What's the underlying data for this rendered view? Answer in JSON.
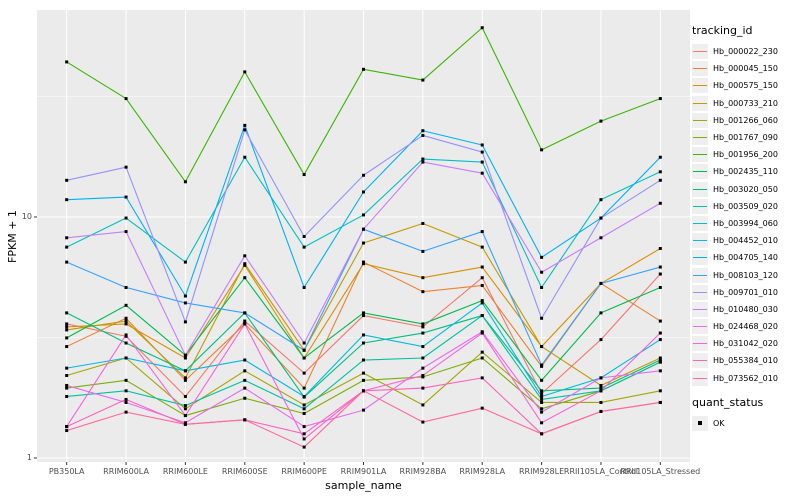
{
  "chart_data": {
    "type": "line",
    "title": "",
    "xlabel": "sample_name",
    "ylabel": "FPKM + 1",
    "yscale": "log10",
    "ylim": [
      1,
      72
    ],
    "y_ticks": [
      1,
      10
    ],
    "grid": true,
    "legend_position": "right",
    "point_shape": "square",
    "point_color": "#000000",
    "categories": [
      "PB350LA",
      "RRIM600LA",
      "RRIM600LE",
      "RRIM600SE",
      "RRIM600PE",
      "RRIM901LA",
      "RRIM928BA",
      "RRIM928LA",
      "RRIM928LE",
      "RRII105LA_Control",
      "RRII105LA_Stressed"
    ],
    "series": [
      {
        "name": "Hb_000022_230",
        "color": "#F8766D",
        "values": [
          3.6,
          3.2,
          1.8,
          3.7,
          2.25,
          3.9,
          3.5,
          5.6,
          1.85,
          3.1,
          5.8
        ]
      },
      {
        "name": "Hb_000045_150",
        "color": "#EA8331",
        "values": [
          2.9,
          3.8,
          2.1,
          3.6,
          1.95,
          6.5,
          4.9,
          5.2,
          2.4,
          5.3,
          3.7
        ]
      },
      {
        "name": "Hb_000575_150",
        "color": "#D89000",
        "values": [
          3.5,
          3.6,
          2.6,
          6.3,
          2.6,
          6.4,
          5.6,
          6.2,
          2.9,
          5.3,
          7.4
        ]
      },
      {
        "name": "Hb_000733_210",
        "color": "#C09B00",
        "values": [
          3.4,
          3.7,
          2.15,
          6.4,
          2.8,
          7.8,
          9.4,
          7.5,
          2.9,
          2.0,
          2.6
        ]
      },
      {
        "name": "Hb_001266_060",
        "color": "#A3A500",
        "values": [
          2.2,
          2.6,
          1.6,
          2.3,
          1.66,
          2.25,
          1.66,
          2.75,
          1.7,
          1.7,
          1.9
        ]
      },
      {
        "name": "Hb_001767_090",
        "color": "#7CAE00",
        "values": [
          1.95,
          2.1,
          1.5,
          1.77,
          1.53,
          2.1,
          2.17,
          2.6,
          1.6,
          1.9,
          2.5
        ]
      },
      {
        "name": "Hb_001956_200",
        "color": "#39B600",
        "values": [
          44,
          31,
          14,
          40,
          15,
          41,
          37,
          61,
          19,
          25,
          31
        ]
      },
      {
        "name": "Hb_002435_110",
        "color": "#00BB4E",
        "values": [
          3.15,
          4.3,
          2.67,
          5.6,
          2.6,
          4.0,
          3.6,
          4.5,
          2.1,
          4.0,
          5.1
        ]
      },
      {
        "name": "Hb_003020_050",
        "color": "#00BF7D",
        "values": [
          4.0,
          3.0,
          2.3,
          4.0,
          1.79,
          3.0,
          3.3,
          3.9,
          1.9,
          1.95,
          2.55
        ]
      },
      {
        "name": "Hb_003509_020",
        "color": "#00C1A3",
        "values": [
          1.8,
          1.9,
          1.65,
          2.1,
          1.6,
          2.55,
          2.6,
          3.9,
          1.75,
          1.9,
          2.5
        ]
      },
      {
        "name": "Hb_003994_060",
        "color": "#00BFC4",
        "values": [
          7.5,
          9.9,
          6.5,
          17.7,
          7.5,
          10.2,
          17.4,
          16.9,
          5.1,
          11.8,
          15.4
        ]
      },
      {
        "name": "Hb_004452_010",
        "color": "#00BAE0",
        "values": [
          2.36,
          2.6,
          2.3,
          2.55,
          1.8,
          3.24,
          2.9,
          4.4,
          1.8,
          2.15,
          3.1
        ]
      },
      {
        "name": "Hb_004705_140",
        "color": "#00B0F6",
        "values": [
          11.8,
          12.1,
          4.7,
          24,
          5.1,
          12.7,
          22.8,
          19.9,
          6.8,
          9.9,
          17.7
        ]
      },
      {
        "name": "Hb_008103_120",
        "color": "#35A2FF",
        "values": [
          6.5,
          5.1,
          4.4,
          4.0,
          2.8,
          8.9,
          7.2,
          8.7,
          2.43,
          5.3,
          6.2
        ]
      },
      {
        "name": "Hb_009701_010",
        "color": "#9590FF",
        "values": [
          14.2,
          16.1,
          3.67,
          23,
          8.3,
          14.9,
          21.8,
          18.6,
          3.8,
          9.9,
          14.2
        ]
      },
      {
        "name": "Hb_010480_030",
        "color": "#C77CFF",
        "values": [
          8.2,
          8.7,
          2.67,
          6.9,
          3.0,
          8.9,
          16.9,
          15.2,
          5.9,
          8.2,
          11.4
        ]
      },
      {
        "name": "Hb_024468_020",
        "color": "#E76BF3",
        "values": [
          2.0,
          1.7,
          1.4,
          1.95,
          1.35,
          1.58,
          2.36,
          3.34,
          1.55,
          2.15,
          2.3
        ]
      },
      {
        "name": "Hb_031042_020",
        "color": "#FA62DB",
        "values": [
          1.35,
          3.24,
          1.5,
          3.6,
          1.2,
          1.9,
          2.2,
          3.3,
          1.4,
          1.9,
          3.3
        ]
      },
      {
        "name": "Hb_055384_010",
        "color": "#FF62BC",
        "values": [
          1.35,
          1.75,
          1.38,
          1.44,
          1.26,
          1.9,
          1.95,
          2.15,
          1.26,
          1.56,
          1.7
        ]
      },
      {
        "name": "Hb_073562_010",
        "color": "#FF6A98",
        "values": [
          1.3,
          1.55,
          1.38,
          1.44,
          1.11,
          1.9,
          1.41,
          1.61,
          1.26,
          1.56,
          1.7
        ]
      }
    ]
  },
  "axes": {
    "y_label": "FPKM + 1",
    "x_label": "sample_name",
    "y_tick_labels": [
      "10",
      "1"
    ]
  },
  "legend": {
    "tracking_title": "tracking_id",
    "quant_title": "quant_status",
    "quant_items": [
      {
        "label": "OK",
        "marker": "black-square"
      }
    ]
  },
  "panel": {
    "bg": "#EBEBEB",
    "grid_color": "#FFFFFF",
    "tick_color": "#333333",
    "tick_label_color": "#4D4D4D"
  }
}
